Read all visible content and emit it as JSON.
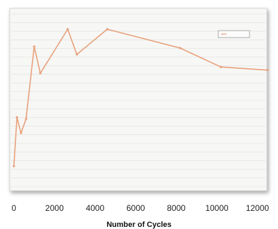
{
  "chart_data": {
    "type": "line",
    "xlabel": "Number of Cycles",
    "ylabel": "",
    "xlim": [
      0,
      12500
    ],
    "ylim": [
      0,
      100
    ],
    "xticks": [
      "0",
      "2000",
      "4000",
      "6000",
      "8000",
      "10000",
      "12000"
    ],
    "grid": true,
    "legend": {
      "placement": "top-right",
      "entries": [
        ""
      ]
    },
    "series": [
      {
        "color": "#e8a07a",
        "x": [
          0,
          150,
          350,
          600,
          1000,
          1300,
          2650,
          3100,
          4600,
          8200,
          10200,
          12500
        ],
        "y": [
          13,
          44,
          34,
          43,
          89,
          72,
          100,
          84,
          100,
          88,
          76,
          74
        ]
      }
    ]
  }
}
